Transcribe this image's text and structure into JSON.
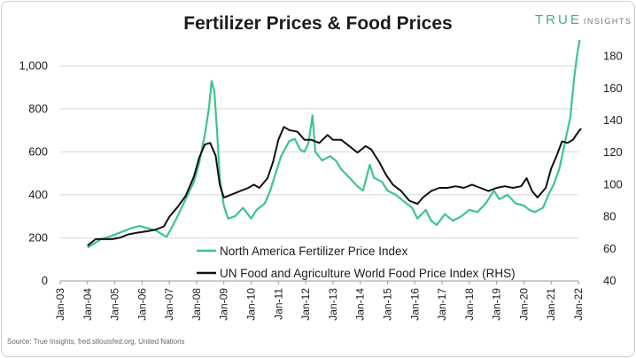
{
  "brand": {
    "word": "TRUE",
    "suffix": "INSIGHTS"
  },
  "source": "Source: True Insights, fred.stlouisfed.org, United Nations",
  "chart_data": {
    "type": "line",
    "title": "Fertilizer Prices & Food Prices",
    "x_labels": [
      "Jan-03",
      "Jan-04",
      "Jan-05",
      "Jan-06",
      "Jan-07",
      "Jan-08",
      "Jan-09",
      "Jan-10",
      "Jan-11",
      "Jan-12",
      "Jan-13",
      "Jan-14",
      "Jan-15",
      "Jan-16",
      "Jan-17",
      "Jan-18",
      "Jan-19",
      "Jan-20",
      "Jan-21",
      "Jan-22"
    ],
    "x_range": [
      2003,
      2022
    ],
    "y_left": {
      "ticks": [
        0,
        200,
        400,
        600,
        800,
        1000
      ],
      "tick_labels": [
        "0",
        "200",
        "400",
        "600",
        "800",
        "1,000"
      ],
      "range": [
        0,
        1100
      ]
    },
    "y_right": {
      "ticks": [
        40,
        60,
        80,
        100,
        120,
        140,
        160,
        180
      ],
      "tick_labels": [
        "40",
        "60",
        "80",
        "100",
        "120",
        "140",
        "160",
        "180"
      ],
      "range": [
        40,
        187.5
      ]
    },
    "colors": {
      "fertilizer": "#3fc48e",
      "food": "#111111"
    },
    "series": [
      {
        "name": "North America Fertilizer Price Index",
        "axis": "left",
        "points": [
          [
            2004.0,
            155
          ],
          [
            2004.2,
            170
          ],
          [
            2004.5,
            195
          ],
          [
            2004.8,
            205
          ],
          [
            2005.0,
            215
          ],
          [
            2005.3,
            230
          ],
          [
            2005.6,
            245
          ],
          [
            2005.9,
            255
          ],
          [
            2006.2,
            245
          ],
          [
            2006.5,
            235
          ],
          [
            2006.75,
            215
          ],
          [
            2006.9,
            205
          ],
          [
            2007.1,
            250
          ],
          [
            2007.3,
            300
          ],
          [
            2007.6,
            380
          ],
          [
            2007.9,
            460
          ],
          [
            2008.1,
            550
          ],
          [
            2008.3,
            680
          ],
          [
            2008.45,
            800
          ],
          [
            2008.55,
            930
          ],
          [
            2008.65,
            880
          ],
          [
            2008.75,
            700
          ],
          [
            2008.85,
            480
          ],
          [
            2009.0,
            350
          ],
          [
            2009.15,
            290
          ],
          [
            2009.4,
            300
          ],
          [
            2009.7,
            340
          ],
          [
            2010.0,
            290
          ],
          [
            2010.2,
            330
          ],
          [
            2010.5,
            360
          ],
          [
            2010.7,
            420
          ],
          [
            2010.9,
            500
          ],
          [
            2011.1,
            580
          ],
          [
            2011.4,
            650
          ],
          [
            2011.6,
            660
          ],
          [
            2011.8,
            610
          ],
          [
            2011.95,
            600
          ],
          [
            2012.1,
            640
          ],
          [
            2012.25,
            770
          ],
          [
            2012.35,
            600
          ],
          [
            2012.6,
            560
          ],
          [
            2012.9,
            580
          ],
          [
            2013.1,
            560
          ],
          [
            2013.3,
            520
          ],
          [
            2013.6,
            480
          ],
          [
            2013.9,
            440
          ],
          [
            2014.1,
            420
          ],
          [
            2014.35,
            540
          ],
          [
            2014.5,
            480
          ],
          [
            2014.8,
            460
          ],
          [
            2015.0,
            420
          ],
          [
            2015.3,
            400
          ],
          [
            2015.6,
            370
          ],
          [
            2015.9,
            340
          ],
          [
            2016.1,
            290
          ],
          [
            2016.4,
            330
          ],
          [
            2016.6,
            280
          ],
          [
            2016.8,
            260
          ],
          [
            2017.1,
            310
          ],
          [
            2017.4,
            280
          ],
          [
            2017.7,
            300
          ],
          [
            2018.0,
            330
          ],
          [
            2018.3,
            320
          ],
          [
            2018.6,
            360
          ],
          [
            2018.9,
            420
          ],
          [
            2019.1,
            380
          ],
          [
            2019.4,
            400
          ],
          [
            2019.7,
            360
          ],
          [
            2020.0,
            350
          ],
          [
            2020.2,
            330
          ],
          [
            2020.4,
            320
          ],
          [
            2020.7,
            340
          ],
          [
            2020.9,
            400
          ],
          [
            2021.1,
            450
          ],
          [
            2021.3,
            520
          ],
          [
            2021.5,
            640
          ],
          [
            2021.7,
            760
          ],
          [
            2021.85,
            950
          ],
          [
            2021.95,
            1050
          ],
          [
            2022.05,
            1120
          ]
        ]
      },
      {
        "name": "UN Food and Agriculture World Food Price Index (RHS)",
        "axis": "right",
        "points": [
          [
            2004.0,
            62
          ],
          [
            2004.3,
            66
          ],
          [
            2004.6,
            66
          ],
          [
            2004.9,
            66
          ],
          [
            2005.2,
            67
          ],
          [
            2005.5,
            69
          ],
          [
            2005.8,
            70
          ],
          [
            2006.2,
            71
          ],
          [
            2006.5,
            72
          ],
          [
            2006.8,
            74
          ],
          [
            2007.0,
            80
          ],
          [
            2007.3,
            86
          ],
          [
            2007.6,
            93
          ],
          [
            2007.9,
            105
          ],
          [
            2008.1,
            117
          ],
          [
            2008.3,
            125
          ],
          [
            2008.5,
            126
          ],
          [
            2008.7,
            118
          ],
          [
            2008.85,
            100
          ],
          [
            2009.0,
            92
          ],
          [
            2009.3,
            94
          ],
          [
            2009.6,
            96
          ],
          [
            2009.9,
            98
          ],
          [
            2010.1,
            100
          ],
          [
            2010.3,
            98
          ],
          [
            2010.6,
            104
          ],
          [
            2010.8,
            114
          ],
          [
            2011.0,
            128
          ],
          [
            2011.2,
            136
          ],
          [
            2011.4,
            134
          ],
          [
            2011.7,
            133
          ],
          [
            2011.95,
            128
          ],
          [
            2012.2,
            128
          ],
          [
            2012.5,
            126
          ],
          [
            2012.8,
            131
          ],
          [
            2013.0,
            128
          ],
          [
            2013.3,
            128
          ],
          [
            2013.6,
            124
          ],
          [
            2013.9,
            120
          ],
          [
            2014.2,
            124
          ],
          [
            2014.4,
            122
          ],
          [
            2014.7,
            114
          ],
          [
            2014.95,
            106
          ],
          [
            2015.2,
            100
          ],
          [
            2015.5,
            96
          ],
          [
            2015.8,
            90
          ],
          [
            2016.1,
            88
          ],
          [
            2016.3,
            92
          ],
          [
            2016.6,
            96
          ],
          [
            2016.9,
            98
          ],
          [
            2017.2,
            98
          ],
          [
            2017.5,
            99
          ],
          [
            2017.8,
            98
          ],
          [
            2018.1,
            100
          ],
          [
            2018.4,
            98
          ],
          [
            2018.7,
            96
          ],
          [
            2019.0,
            98
          ],
          [
            2019.3,
            99
          ],
          [
            2019.6,
            98
          ],
          [
            2019.9,
            99
          ],
          [
            2020.1,
            104
          ],
          [
            2020.3,
            96
          ],
          [
            2020.5,
            92
          ],
          [
            2020.8,
            98
          ],
          [
            2021.0,
            110
          ],
          [
            2021.2,
            118
          ],
          [
            2021.4,
            127
          ],
          [
            2021.6,
            126
          ],
          [
            2021.8,
            128
          ],
          [
            2022.0,
            133
          ],
          [
            2022.1,
            135
          ]
        ]
      }
    ],
    "legend": [
      {
        "label": "North America Fertilizer Price Index",
        "series": 0
      },
      {
        "label": "UN Food and Agriculture World Food Price Index (RHS)",
        "series": 1
      }
    ],
    "legend_placement": "bottom-center"
  }
}
